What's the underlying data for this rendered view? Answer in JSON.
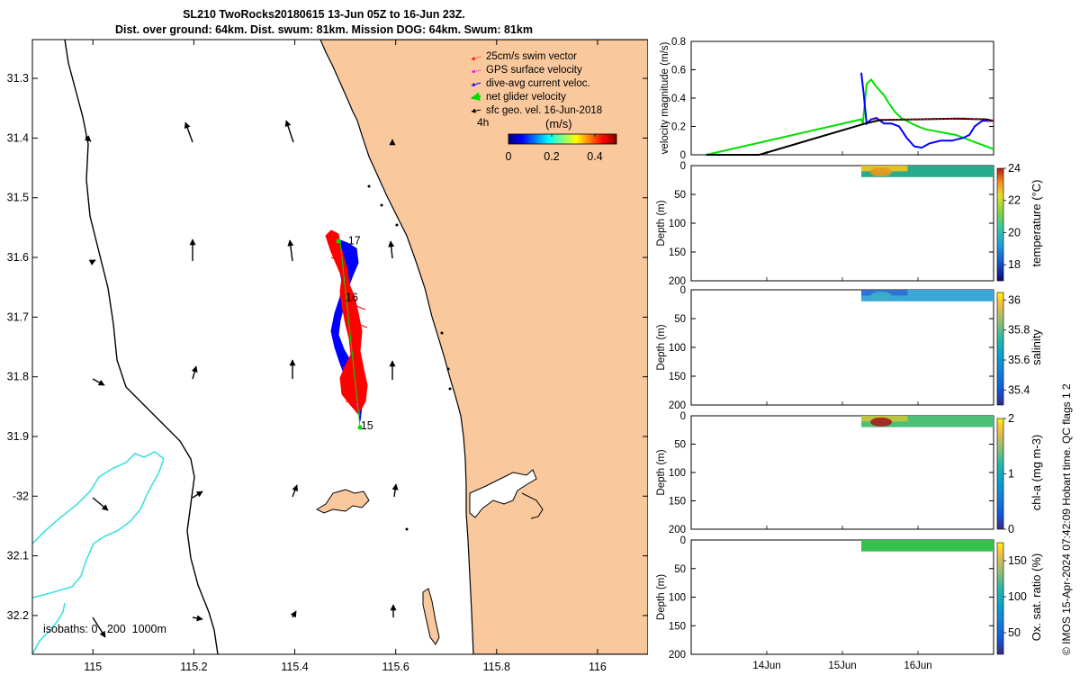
{
  "title": {
    "line1": "SL210 TwoRocks20180615 13-Jun 05Z to 16-Jun 23Z.",
    "line2": "Dist. over ground: 64km. Dist. swum: 81km. Mission DOG: 64km. Swum: 81km"
  },
  "credit": "© IMOS 15-Apr-2024 07:42:09 Hobart time. QC flags 1  2",
  "map": {
    "xlim": [
      114.88,
      116.1
    ],
    "ylim": [
      -32.265,
      -31.235
    ],
    "xticks": [
      115,
      115.2,
      115.4,
      115.6,
      115.8,
      116
    ],
    "xtick_labels": [
      "115",
      "115.2",
      "115.4",
      "115.6",
      "115.8",
      "116"
    ],
    "yticks": [
      -31.3,
      -31.4,
      -31.5,
      -31.6,
      -31.7,
      -31.8,
      -31.9,
      -32,
      -32.1,
      -32.2
    ],
    "ytick_labels": [
      "31.3",
      "31.4",
      "31.5",
      "31.6",
      "31.7",
      "31.8",
      "31.9",
      "-32",
      "32.1",
      "32.2"
    ],
    "legend": [
      {
        "label": "25cm/s swim vector",
        "color": "#ff0000"
      },
      {
        "label": "GPS surface velocity",
        "color": "#ff00ff"
      },
      {
        "label": "dive-avg current veloc.",
        "color": "#0000ff"
      },
      {
        "label": "net glider velocity",
        "color": "#00dd00"
      },
      {
        "label": "sfc geo. vel. 16-Jun-2018",
        "color": "#000000"
      }
    ],
    "legend_extra": "4h",
    "colorbar": {
      "title": "(m/s)",
      "min": 0,
      "max": 0.5,
      "ticks": [
        "0",
        "0.2",
        "0.4"
      ]
    },
    "isobath_label": "isobaths: 0   200  1000m",
    "day_labels": [
      {
        "label": "17",
        "lon": 115.495,
        "lat": -31.572
      },
      {
        "label": "16",
        "lon": 115.49,
        "lat": -31.667
      },
      {
        "label": "15",
        "lon": 115.52,
        "lat": -31.882
      }
    ],
    "colors": {
      "land": "#f9c89d",
      "coast": "#000000",
      "isobath_200": "#000000",
      "isobath_1000": "#40e0e0"
    }
  },
  "chart_data": [
    {
      "type": "line",
      "title": "",
      "ylabel": "velocity magnitude (m/s)",
      "ylim": [
        0,
        0.8
      ],
      "yticks": [
        "0",
        "0.2",
        "0.4",
        "0.6",
        "0.8"
      ],
      "x_range_days": [
        13.0,
        17.0
      ],
      "series": [
        {
          "color": "#00e000",
          "x": [
            13.2,
            15.25,
            15.27,
            15.32,
            15.38,
            15.45,
            15.55,
            15.62,
            15.7,
            15.78,
            15.85,
            15.92,
            16.0,
            16.1,
            16.2,
            16.3,
            16.4,
            16.5,
            16.6,
            16.7,
            16.8,
            16.9,
            17.0
          ],
          "y": [
            0.0,
            0.25,
            0.22,
            0.5,
            0.53,
            0.48,
            0.42,
            0.36,
            0.3,
            0.26,
            0.24,
            0.22,
            0.2,
            0.18,
            0.17,
            0.16,
            0.15,
            0.14,
            0.12,
            0.1,
            0.08,
            0.06,
            0.04
          ]
        },
        {
          "color": "#0000ff",
          "x": [
            15.25,
            15.28,
            15.32,
            15.38,
            15.45,
            15.55,
            15.65,
            15.75,
            15.85,
            15.95,
            16.05,
            16.15,
            16.3,
            16.45,
            16.6,
            16.68,
            16.75,
            16.85,
            17.0
          ],
          "y": [
            0.58,
            0.44,
            0.22,
            0.25,
            0.26,
            0.22,
            0.22,
            0.2,
            0.12,
            0.06,
            0.05,
            0.08,
            0.1,
            0.1,
            0.12,
            0.14,
            0.2,
            0.24,
            0.24
          ]
        },
        {
          "color": "#000000",
          "x": [
            13.2,
            13.9,
            15.3,
            15.5,
            16.0,
            16.5,
            16.9,
            17.0
          ],
          "y": [
            0.0,
            0.0,
            0.22,
            0.245,
            0.25,
            0.255,
            0.25,
            0.24
          ]
        },
        {
          "color": "#ff0000",
          "x": [
            15.4,
            15.6,
            15.8,
            16.0,
            16.2,
            16.4,
            16.6,
            16.8,
            17.0
          ],
          "y": [
            0.25,
            0.25,
            0.25,
            0.25,
            0.25,
            0.255,
            0.26,
            0.25,
            0.24
          ]
        }
      ]
    },
    {
      "type": "heatmap",
      "ylabel": "Depth (m)",
      "ylim": [
        200,
        0
      ],
      "yticks": [
        "0",
        "50",
        "100",
        "150",
        "200"
      ],
      "colorbar_label": "temperature (°C)",
      "clim": [
        17,
        24
      ],
      "cticks": [
        "18",
        "20",
        "22",
        "24"
      ],
      "x_extent_days": [
        15.25,
        17.0
      ],
      "depth_extent": [
        0,
        20
      ]
    },
    {
      "type": "heatmap",
      "ylabel": "Depth (m)",
      "ylim": [
        200,
        0
      ],
      "yticks": [
        "0",
        "50",
        "100",
        "150",
        "200"
      ],
      "colorbar_label": "salinity",
      "clim": [
        35.3,
        36.05
      ],
      "cticks": [
        "35.4",
        "35.6",
        "35.8",
        "36"
      ],
      "x_extent_days": [
        15.25,
        17.0
      ],
      "depth_extent": [
        0,
        20
      ]
    },
    {
      "type": "heatmap",
      "ylabel": "Depth (m)",
      "ylim": [
        200,
        0
      ],
      "yticks": [
        "0",
        "50",
        "100",
        "150",
        "200"
      ],
      "colorbar_label": "chl-a (mg m-3)",
      "clim": [
        0,
        2
      ],
      "cticks": [
        "0",
        "1",
        "2"
      ],
      "x_extent_days": [
        15.25,
        17.0
      ],
      "depth_extent": [
        0,
        20
      ]
    },
    {
      "type": "heatmap",
      "ylabel": "Depth (m)",
      "ylim": [
        200,
        0
      ],
      "yticks": [
        "0",
        "50",
        "100",
        "150",
        "200"
      ],
      "colorbar_label": "Ox. sat. ratio (%)",
      "clim": [
        20,
        175
      ],
      "cticks": [
        "50",
        "100",
        "150"
      ],
      "x_extent_days": [
        15.25,
        17.0
      ],
      "depth_extent": [
        0,
        20
      ]
    }
  ],
  "time_axis": {
    "ticks": [
      {
        "day": 14,
        "label": "14Jun"
      },
      {
        "day": 15,
        "label": "15Jun"
      },
      {
        "day": 16,
        "label": "16Jun"
      }
    ]
  }
}
